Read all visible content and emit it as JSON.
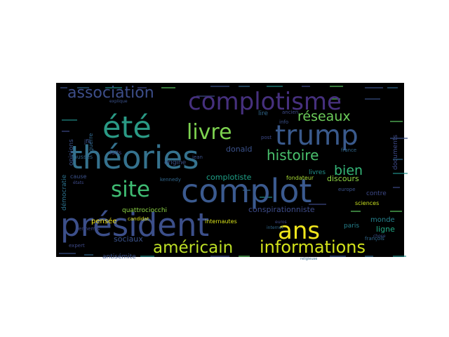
{
  "chart_data": {
    "type": "wordcloud",
    "background": "#000000",
    "words": [
      {
        "text": "complot",
        "weight": 46,
        "color": "#3b5a8f"
      },
      {
        "text": "théories",
        "weight": 45,
        "color": "#35728e"
      },
      {
        "text": "président",
        "weight": 45,
        "color": "#3c4f8a"
      },
      {
        "text": "été",
        "weight": 43,
        "color": "#2a9a85"
      },
      {
        "text": "trump",
        "weight": 39,
        "color": "#3a5a8c"
      },
      {
        "text": "complotisme",
        "weight": 34,
        "color": "#46307e"
      },
      {
        "text": "ans",
        "weight": 34,
        "color": "#f0e51c"
      },
      {
        "text": "site",
        "weight": 31,
        "color": "#3fbc73"
      },
      {
        "text": "livre",
        "weight": 30,
        "color": "#7dd250"
      },
      {
        "text": "informations",
        "weight": 24,
        "color": "#d2e21b"
      },
      {
        "text": "américain",
        "weight": 23,
        "color": "#bddf26"
      },
      {
        "text": "association",
        "weight": 22,
        "color": "#3d4e8a"
      },
      {
        "text": "histoire",
        "weight": 20,
        "color": "#4ac16d"
      },
      {
        "text": "réseaux",
        "weight": 19,
        "color": "#6ccd5a"
      },
      {
        "text": "bien",
        "weight": 19,
        "color": "#35b779"
      },
      {
        "text": "complotiste",
        "weight": 11,
        "color": "#1fa187"
      },
      {
        "text": "conspirationniste",
        "weight": 11,
        "color": "#3e4c8a"
      },
      {
        "text": "donald",
        "weight": 11,
        "color": "#3b528b"
      },
      {
        "text": "discours",
        "weight": 11,
        "color": "#8fd744"
      },
      {
        "text": "sociaux",
        "weight": 11,
        "color": "#3b528b"
      },
      {
        "text": "ligne",
        "weight": 11,
        "color": "#22a884"
      },
      {
        "text": "monde",
        "weight": 10,
        "color": "#26828e"
      },
      {
        "text": "pensée",
        "weight": 10,
        "color": "#f2e51d"
      },
      {
        "text": "quattrociocchi",
        "weight": 9,
        "color": "#8ed645"
      },
      {
        "text": "opinions",
        "weight": 9,
        "color": "#3b528b"
      },
      {
        "text": "démocratie",
        "weight": 9,
        "color": "#2c728e"
      },
      {
        "text": "antisémite",
        "weight": 9,
        "color": "#3b528b"
      },
      {
        "text": "documents",
        "weight": 9,
        "color": "#3e4a89"
      },
      {
        "text": "paris",
        "weight": 9,
        "color": "#26828e"
      },
      {
        "text": "lire",
        "weight": 9,
        "color": "#31688e"
      },
      {
        "text": "livres",
        "weight": 9,
        "color": "#21918c"
      },
      {
        "text": "origine",
        "weight": 9,
        "color": "#3b528b"
      },
      {
        "text": "contre",
        "weight": 9,
        "color": "#3e4a89"
      },
      {
        "text": "sciences",
        "weight": 8,
        "color": "#c8e020"
      },
      {
        "text": "internautes",
        "weight": 8,
        "color": "#d8e219"
      },
      {
        "text": "fondateur",
        "weight": 8,
        "color": "#a8db34"
      },
      {
        "text": "fausses",
        "weight": 8,
        "color": "#31688e"
      },
      {
        "text": "faits",
        "weight": 8,
        "color": "#3e4a89"
      },
      {
        "text": "guerre",
        "weight": 8,
        "color": "#31688e"
      },
      {
        "text": "jfk",
        "weight": 8,
        "color": "#3b528b"
      },
      {
        "text": "cause",
        "weight": 8,
        "color": "#3b528b"
      },
      {
        "text": "candidat",
        "weight": 7,
        "color": "#dde318"
      },
      {
        "text": "ennemis",
        "weight": 7,
        "color": "#3e4a89"
      },
      {
        "text": "expert",
        "weight": 7,
        "color": "#3e4a89"
      },
      {
        "text": "ancien",
        "weight": 7,
        "color": "#3e4a89"
      },
      {
        "text": "info",
        "weight": 7,
        "color": "#3b528b"
      },
      {
        "text": "france",
        "weight": 7,
        "color": "#31688e"
      },
      {
        "text": "post",
        "weight": 7,
        "color": "#3e4a89"
      },
      {
        "text": "jean",
        "weight": 7,
        "color": "#3b528b"
      },
      {
        "text": "kennedy",
        "weight": 7,
        "color": "#31688e"
      },
      {
        "text": "europe",
        "weight": 7,
        "color": "#3b528b"
      },
      {
        "text": "françois",
        "weight": 7,
        "color": "#31688e"
      },
      {
        "text": "euros",
        "weight": 6,
        "color": "#3e4a89"
      },
      {
        "text": "internet",
        "weight": 6,
        "color": "#31688e"
      },
      {
        "text": "chose",
        "weight": 6,
        "color": "#3b528b"
      },
      {
        "text": "états",
        "weight": 6,
        "color": "#3e4a89"
      },
      {
        "text": "explique",
        "weight": 6,
        "color": "#3b528b"
      },
      {
        "text": "religieuse",
        "weight": 5,
        "color": "#31688e"
      }
    ]
  }
}
